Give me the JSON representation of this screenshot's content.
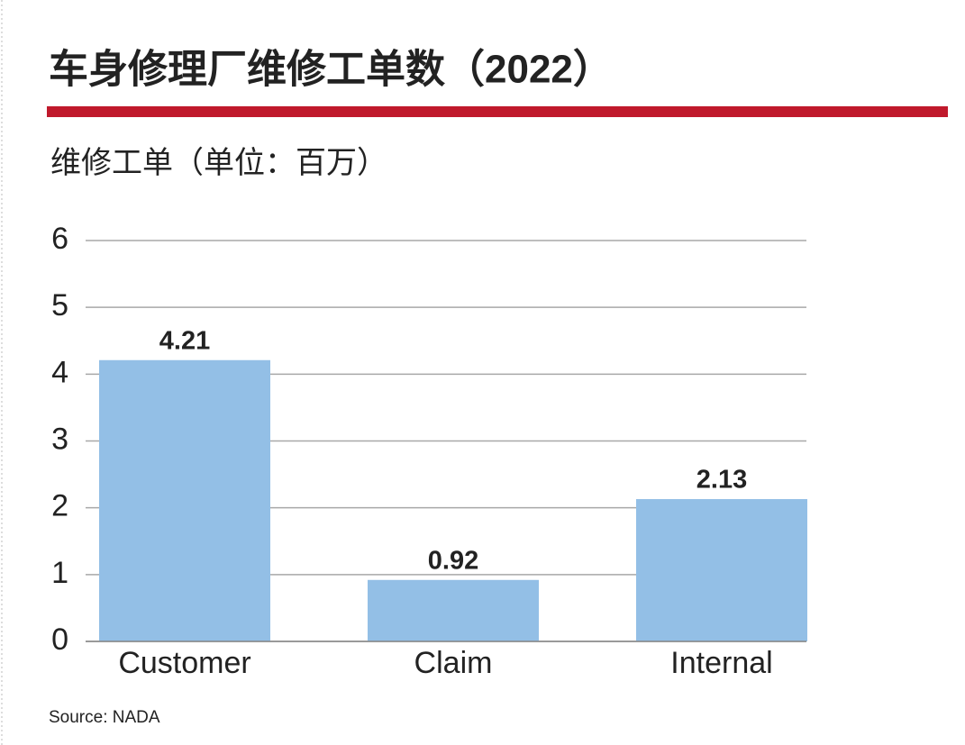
{
  "chart_data": {
    "type": "bar",
    "title": "车身修理厂维修工单数（2022）",
    "subtitle": "维修工单（单位：百万）",
    "categories": [
      "Customer",
      "Claim",
      "Internal"
    ],
    "values": [
      4.21,
      0.92,
      2.13
    ],
    "color": "#93bfe6",
    "ylim": [
      0,
      6
    ],
    "yticks": [
      0,
      1,
      2,
      3,
      4,
      5,
      6
    ],
    "grid": true,
    "source": "Source: NADA"
  }
}
